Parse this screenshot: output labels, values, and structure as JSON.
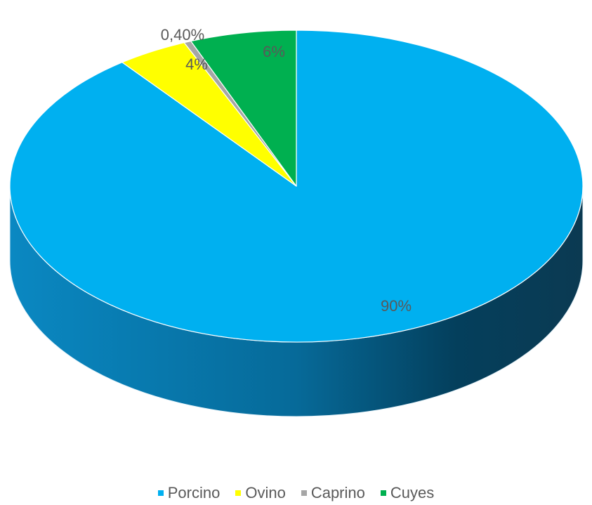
{
  "chart_data": {
    "type": "pie",
    "style": "3d",
    "categories": [
      "Porcino",
      "Ovino",
      "Caprino",
      "Cuyes"
    ],
    "values": [
      89.6,
      4.0,
      0.4,
      6.0
    ],
    "labels": [
      "90%",
      "4%",
      "0,40%",
      "6%"
    ],
    "colors": [
      "#00B0F0",
      "#FFFF00",
      "#A6A6A6",
      "#00B050"
    ],
    "legend": {
      "position": "bottom",
      "entries": [
        "Porcino",
        "Ovino",
        "Caprino",
        "Cuyes"
      ]
    }
  }
}
